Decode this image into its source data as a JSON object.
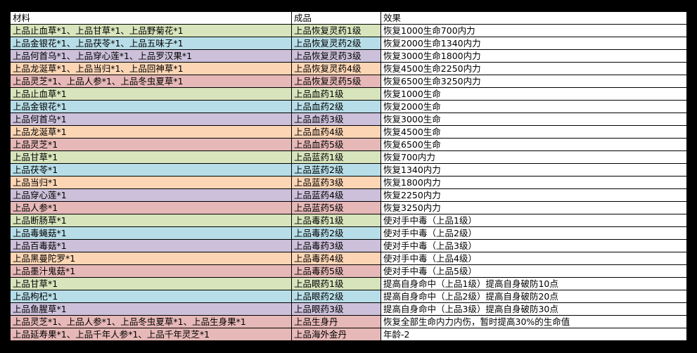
{
  "headers": [
    "材料",
    "成品",
    "效果"
  ],
  "row_colors": [
    "#d8e4bc",
    "#b7dee8",
    "#ccc0da",
    "#fcd5b4",
    "#e6b8b7"
  ],
  "rows": [
    {
      "c": 0,
      "material": "上品止血草*1、上品甘草*1、上品野菊花*1",
      "product": "上品恢复灵药1级",
      "effect": "恢复1000生命700内力"
    },
    {
      "c": 1,
      "material": "上品金银花*1、上品茯苓*1、上品五味子*1",
      "product": "上品恢复灵药2级",
      "effect": "恢复2000生命1340内力"
    },
    {
      "c": 2,
      "material": "上品何首乌*1、上品穿心莲*1、上品罗汉果*1",
      "product": "上品恢复灵药3级",
      "effect": "恢复3000生命1800内力"
    },
    {
      "c": 3,
      "material": "上品龙涎草*1、上品当归*1、上品回神草*1",
      "product": "上品恢复灵药4级",
      "effect": "恢复4500生命2250内力"
    },
    {
      "c": 4,
      "material": "上品灵芝*1、上品人参*1、上品冬虫夏草*1",
      "product": "上品恢复灵药5级",
      "effect": "恢复6500生命3250内力"
    },
    {
      "c": 0,
      "material": "上品止血草*1",
      "product": "上品血药1级",
      "effect": "恢复1000生命"
    },
    {
      "c": 1,
      "material": "上品金银花*1",
      "product": "上品血药2级",
      "effect": "恢复2000生命"
    },
    {
      "c": 2,
      "material": "上品何首乌*1",
      "product": "上品血药3级",
      "effect": "恢复3000生命"
    },
    {
      "c": 3,
      "material": "上品龙涎草*1",
      "product": "上品血药4级",
      "effect": "恢复4500生命"
    },
    {
      "c": 4,
      "material": "上品灵芝*1",
      "product": "上品血药5级",
      "effect": "恢复6500生命"
    },
    {
      "c": 0,
      "material": "上品甘草*1",
      "product": "上品蓝药1级",
      "effect": "恢复700内力"
    },
    {
      "c": 1,
      "material": "上品茯苓*1",
      "product": "上品蓝药2级",
      "effect": "恢复1340内力"
    },
    {
      "c": 3,
      "material": "上品当归*1",
      "product": "上品蓝药3级",
      "effect": "恢复1800内力"
    },
    {
      "c": 2,
      "material": "上品穿心莲*1",
      "product": "上品蓝药4级",
      "effect": "恢复2250内力"
    },
    {
      "c": 4,
      "material": "上品人参*1",
      "product": "上品蓝药5级",
      "effect": "恢复3250内力"
    },
    {
      "c": 0,
      "material": "上品断肠草*1",
      "product": "上品毒药1级",
      "effect": "使对手中毒（上品1级）"
    },
    {
      "c": 1,
      "material": "上品毒蝇菇*1",
      "product": "上品毒药2级",
      "effect": "使对手中毒（上品2级）"
    },
    {
      "c": 2,
      "material": "上品百毒菇*1",
      "product": "上品毒药3级",
      "effect": "使对手中毒（上品3级）"
    },
    {
      "c": 3,
      "material": "上品黑曼陀罗*1",
      "product": "上品毒药4级",
      "effect": "使对手中毒（上品4级）"
    },
    {
      "c": 4,
      "material": "上品墨汁鬼菇*1",
      "product": "上品毒药5级",
      "effect": "使对手中毒（上品5级）"
    },
    {
      "c": 0,
      "material": "上品甘草*1",
      "product": "上品眼药1级",
      "effect": "提高自身命中（上品1级）提高自身破防10点"
    },
    {
      "c": 1,
      "material": "上品枸杞*1",
      "product": "上品眼药2级",
      "effect": "提高自身命中（上品2级）提高自身破防20点"
    },
    {
      "c": 2,
      "material": "上品鱼腥草*1",
      "product": "上品眼药3级",
      "effect": "提高自身命中（上品3级）提高自身破防30点"
    },
    {
      "c": 4,
      "material": "上品灵芝*1、上品人参*1、上品冬虫夏草*1、上品生身果*1",
      "product": "上品生身丹",
      "effect": "恢复全部生命内力内伤，暂时提高30%的生命值"
    },
    {
      "c": 4,
      "material": "上品延寿果*1、上品千年人参*1、上品千年灵芝*1",
      "product": "上品海外金丹",
      "effect": "年龄-2"
    }
  ]
}
